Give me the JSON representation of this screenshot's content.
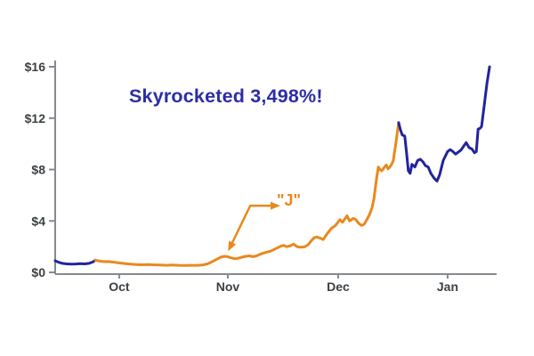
{
  "chart_data": {
    "type": "line",
    "title": "Skyrocketed 3,498%!",
    "annotation_label": "\"J\"",
    "xlabel": "",
    "ylabel": "",
    "ylim": [
      0,
      16
    ],
    "grid": false,
    "legend": "none",
    "y_ticks": [
      {
        "value": 0,
        "label": "$0"
      },
      {
        "value": 4,
        "label": "$4"
      },
      {
        "value": 8,
        "label": "$8"
      },
      {
        "value": 12,
        "label": "$12"
      },
      {
        "value": 16,
        "label": "$16"
      }
    ],
    "x_ticks": [
      {
        "f": 0.145,
        "label": "Oct"
      },
      {
        "f": 0.391,
        "label": "Nov"
      },
      {
        "f": 0.641,
        "label": "Dec"
      },
      {
        "f": 0.889,
        "label": "Jan"
      }
    ],
    "colors": {
      "orange": "#E8891D",
      "navy": "#22249C",
      "title": "#2B2DA6",
      "axis": "#85898F",
      "label": "#3C4043"
    },
    "series": [
      {
        "name": "pre-run-segment",
        "color_key": "navy",
        "points": [
          [
            0.0,
            0.9
          ],
          [
            0.008,
            0.78
          ],
          [
            0.016,
            0.7
          ],
          [
            0.026,
            0.66
          ],
          [
            0.036,
            0.64
          ],
          [
            0.046,
            0.65
          ],
          [
            0.056,
            0.68
          ],
          [
            0.067,
            0.66
          ],
          [
            0.077,
            0.7
          ],
          [
            0.085,
            0.8
          ],
          [
            0.091,
            0.95
          ]
        ]
      },
      {
        "name": "main-run-segment",
        "color_key": "orange",
        "points": [
          [
            0.091,
            0.95
          ],
          [
            0.097,
            0.9
          ],
          [
            0.105,
            0.86
          ],
          [
            0.113,
            0.83
          ],
          [
            0.121,
            0.84
          ],
          [
            0.129,
            0.8
          ],
          [
            0.139,
            0.76
          ],
          [
            0.149,
            0.72
          ],
          [
            0.159,
            0.68
          ],
          [
            0.171,
            0.64
          ],
          [
            0.183,
            0.61
          ],
          [
            0.196,
            0.59
          ],
          [
            0.21,
            0.6
          ],
          [
            0.224,
            0.58
          ],
          [
            0.238,
            0.57
          ],
          [
            0.252,
            0.55
          ],
          [
            0.266,
            0.57
          ],
          [
            0.28,
            0.55
          ],
          [
            0.294,
            0.54
          ],
          [
            0.308,
            0.55
          ],
          [
            0.323,
            0.55
          ],
          [
            0.335,
            0.58
          ],
          [
            0.345,
            0.66
          ],
          [
            0.355,
            0.82
          ],
          [
            0.365,
            1.0
          ],
          [
            0.375,
            1.18
          ],
          [
            0.383,
            1.25
          ],
          [
            0.391,
            1.22
          ],
          [
            0.399,
            1.12
          ],
          [
            0.407,
            1.06
          ],
          [
            0.415,
            1.1
          ],
          [
            0.423,
            1.18
          ],
          [
            0.431,
            1.25
          ],
          [
            0.44,
            1.28
          ],
          [
            0.448,
            1.22
          ],
          [
            0.456,
            1.28
          ],
          [
            0.464,
            1.4
          ],
          [
            0.472,
            1.5
          ],
          [
            0.48,
            1.58
          ],
          [
            0.488,
            1.65
          ],
          [
            0.496,
            1.78
          ],
          [
            0.504,
            1.92
          ],
          [
            0.512,
            2.05
          ],
          [
            0.518,
            2.1
          ],
          [
            0.524,
            2.0
          ],
          [
            0.532,
            2.05
          ],
          [
            0.54,
            2.2
          ],
          [
            0.548,
            2.0
          ],
          [
            0.556,
            1.95
          ],
          [
            0.565,
            1.98
          ],
          [
            0.573,
            2.15
          ],
          [
            0.581,
            2.5
          ],
          [
            0.587,
            2.7
          ],
          [
            0.593,
            2.75
          ],
          [
            0.601,
            2.65
          ],
          [
            0.607,
            2.55
          ],
          [
            0.615,
            2.95
          ],
          [
            0.625,
            3.4
          ],
          [
            0.635,
            3.65
          ],
          [
            0.645,
            4.1
          ],
          [
            0.651,
            3.9
          ],
          [
            0.661,
            4.4
          ],
          [
            0.667,
            4.0
          ],
          [
            0.675,
            4.2
          ],
          [
            0.681,
            4.1
          ],
          [
            0.688,
            3.8
          ],
          [
            0.694,
            3.65
          ],
          [
            0.7,
            3.75
          ],
          [
            0.706,
            4.1
          ],
          [
            0.712,
            4.5
          ],
          [
            0.718,
            5.05
          ],
          [
            0.722,
            5.7
          ],
          [
            0.728,
            7.3
          ],
          [
            0.732,
            8.2
          ],
          [
            0.736,
            8.0
          ],
          [
            0.74,
            7.9
          ],
          [
            0.744,
            8.1
          ],
          [
            0.75,
            8.35
          ],
          [
            0.754,
            8.05
          ],
          [
            0.758,
            8.2
          ],
          [
            0.762,
            8.4
          ],
          [
            0.766,
            8.7
          ],
          [
            0.772,
            10.1
          ],
          [
            0.778,
            11.65
          ]
        ]
      },
      {
        "name": "final-surge-segment",
        "color_key": "navy",
        "points": [
          [
            0.778,
            11.65
          ],
          [
            0.782,
            11.1
          ],
          [
            0.786,
            10.7
          ],
          [
            0.792,
            10.6
          ],
          [
            0.796,
            9.3
          ],
          [
            0.8,
            7.9
          ],
          [
            0.804,
            7.7
          ],
          [
            0.808,
            8.4
          ],
          [
            0.815,
            8.2
          ],
          [
            0.821,
            8.7
          ],
          [
            0.827,
            8.8
          ],
          [
            0.833,
            8.6
          ],
          [
            0.839,
            8.3
          ],
          [
            0.845,
            8.2
          ],
          [
            0.851,
            7.7
          ],
          [
            0.859,
            7.3
          ],
          [
            0.865,
            7.1
          ],
          [
            0.871,
            7.6
          ],
          [
            0.879,
            8.7
          ],
          [
            0.889,
            9.4
          ],
          [
            0.895,
            9.55
          ],
          [
            0.901,
            9.4
          ],
          [
            0.907,
            9.2
          ],
          [
            0.913,
            9.35
          ],
          [
            0.919,
            9.5
          ],
          [
            0.925,
            9.8
          ],
          [
            0.931,
            10.1
          ],
          [
            0.938,
            9.7
          ],
          [
            0.944,
            9.6
          ],
          [
            0.95,
            9.3
          ],
          [
            0.954,
            9.4
          ],
          [
            0.958,
            11.15
          ],
          [
            0.962,
            11.2
          ],
          [
            0.966,
            11.35
          ],
          [
            0.972,
            13.0
          ],
          [
            0.978,
            14.7
          ],
          [
            0.984,
            16.0
          ]
        ]
      }
    ],
    "annotation_arrow": {
      "points_fv": [
        [
          0.498,
          5.19
        ],
        [
          0.442,
          5.19
        ],
        [
          0.397,
          2.01
        ]
      ],
      "head_at_start": true,
      "head_at_end": true
    }
  }
}
